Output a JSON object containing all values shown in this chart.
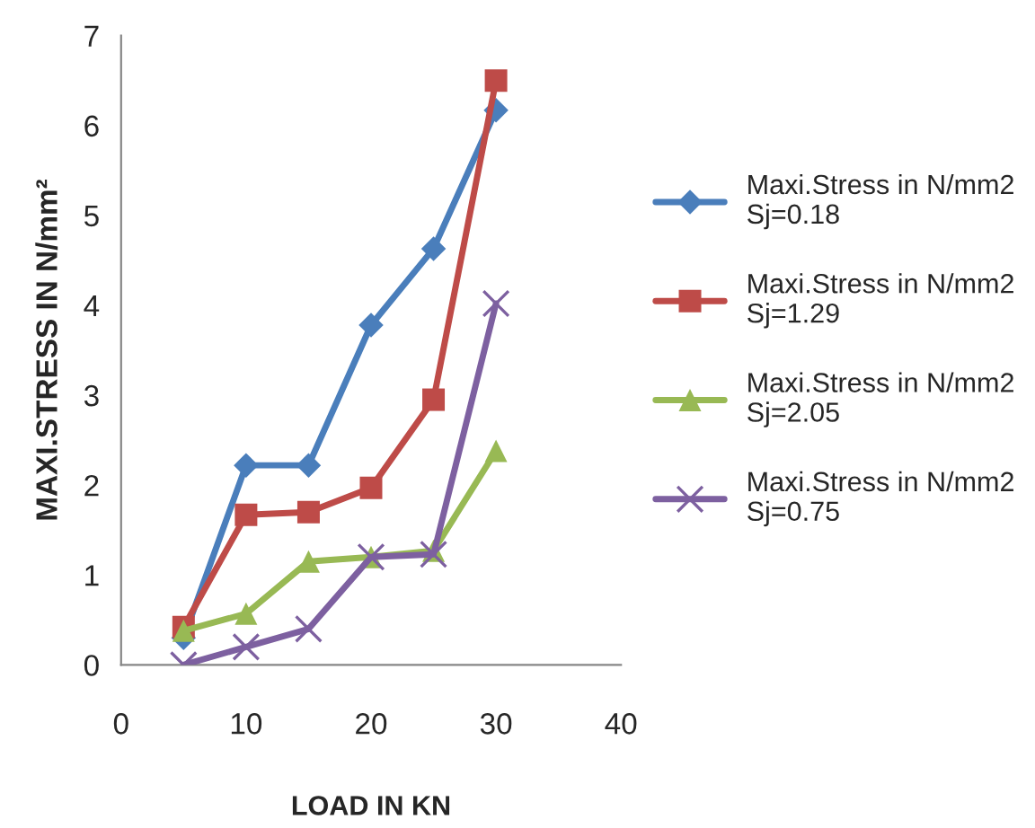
{
  "chart_data": {
    "type": "line",
    "xlabel": "LOAD IN KN",
    "ylabel": "MAXI.STRESS IN N/mm²",
    "xlim": [
      0,
      40
    ],
    "xticks": [
      0,
      10,
      20,
      30,
      40
    ],
    "ylim": [
      0,
      7
    ],
    "yticks": [
      0,
      1,
      2,
      3,
      4,
      5,
      6,
      7
    ],
    "grid": false,
    "legend": "right",
    "x": [
      5,
      10,
      15,
      20,
      25,
      30
    ],
    "series": [
      {
        "name": "Maxi.Stress in N/mm2\nSj=0.18",
        "color": "#4a7ebb",
        "marker": "diamond",
        "values": [
          0.3,
          2.22,
          2.22,
          3.78,
          4.63,
          6.17
        ]
      },
      {
        "name": "Maxi.Stress in N/mm2\nSj=1.29",
        "color": "#be4b48",
        "marker": "square",
        "values": [
          0.42,
          1.67,
          1.7,
          1.97,
          2.95,
          6.5
        ]
      },
      {
        "name": "Maxi.Stress in N/mm2\nSj=2.05",
        "color": "#98b954",
        "marker": "triangle",
        "values": [
          0.38,
          0.57,
          1.15,
          1.2,
          1.27,
          2.38
        ]
      },
      {
        "name": "Maxi.Stress in N/mm2\nSj=0.75",
        "color": "#7d60a0",
        "marker": "cross",
        "values": [
          0.0,
          0.2,
          0.4,
          1.2,
          1.23,
          4.02
        ]
      }
    ]
  }
}
